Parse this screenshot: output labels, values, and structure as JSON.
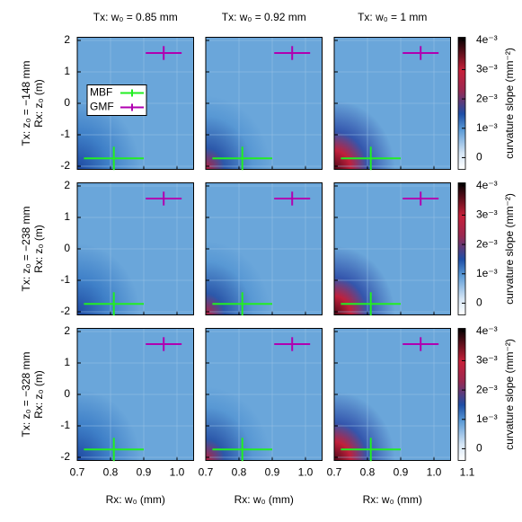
{
  "chart_data": {
    "type": "heatmap",
    "column_titles": [
      "Tx: w₀ = 0.85 mm",
      "Tx: w₀ = 0.92 mm",
      "Tx: w₀ = 1 mm"
    ],
    "row_labels": [
      "Tx: z₀ = −148 mm",
      "Tx: z₀ = −238 mm",
      "Tx: z₀ = −328 mm"
    ],
    "xlabel": "Rx: w₀ (mm)",
    "ylabel": "Rx: z₀ (m)",
    "colorbar_label": "curvature slope (mm⁻²)",
    "xlim": [
      0.7,
      1.05
    ],
    "xticks": [
      0.7,
      0.8,
      0.9,
      {
        "value": 1,
        "label": "1.0"
      },
      1.1
    ],
    "ylim": [
      -2.1,
      2.1
    ],
    "yticks": [
      -2,
      -1,
      0,
      1,
      2
    ],
    "clim": [
      -0.0004,
      0.0041
    ],
    "cticks": [
      0,
      {
        "value": 0.001,
        "label": "1e⁻³"
      },
      {
        "value": 0.002,
        "label": "2e⁻³"
      },
      {
        "value": 0.003,
        "label": "3e⁻³"
      },
      {
        "value": 0.004,
        "label": "4e⁻³"
      }
    ],
    "grid": true,
    "legend": "upper left",
    "series": [
      {
        "name": "MBF",
        "color": "#22ee22",
        "x": [
          0.81
        ],
        "y": [
          -1.75
        ],
        "xerr": [
          0.09
        ],
        "yerr": [
          0.37
        ]
      },
      {
        "name": "GMF",
        "color": "#b000b0",
        "x": [
          0.96
        ],
        "y": [
          1.6
        ],
        "xerr": [
          0.054
        ],
        "yerr": [
          0.22
        ]
      }
    ]
  }
}
